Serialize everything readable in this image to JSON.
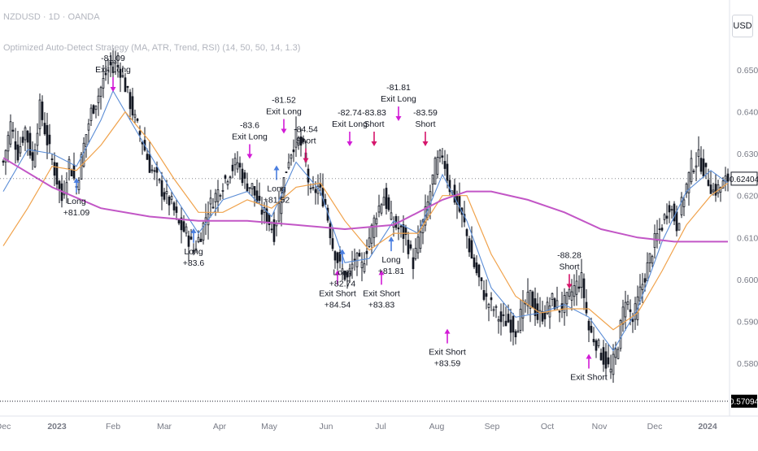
{
  "header": {
    "symbol_line": "NZDUSD · 1D · OANDA",
    "strategy_line": "Optimized Auto-Detect Strategy (MA, ATR, Trend, RSI) (14, 50, 50, 14, 1.3)",
    "currency": "USD"
  },
  "price_scale": {
    "last_price": "0.62404",
    "low_marker": "0.57094"
  },
  "colors": {
    "up_candle": "#131722",
    "down_candle": "#131722",
    "fast_ma": "#5b8dd6",
    "slow_ma": "#f0a24b",
    "long_ma": "#c256c6",
    "long_signal": "#4a7ee0",
    "short_signal": "#d5156b",
    "exit_signal": "#d21bd6",
    "last_price_bg": "#131722",
    "low_marker_bg": "#000000"
  },
  "chart_data": {
    "type": "candlestick",
    "symbol": "NZDUSD",
    "timeframe": "1D",
    "y_axis": {
      "ticks": [
        0.65,
        0.64,
        0.63,
        0.62,
        0.61,
        0.6,
        0.59,
        0.58
      ],
      "tick_labels": [
        "0.65000",
        "0.64000",
        "0.63000",
        "0.62000",
        "0.61000",
        "0.60000",
        "0.59000",
        "0.58000"
      ]
    },
    "x_axis": {
      "tick_labels": [
        "Dec",
        "2023",
        "Feb",
        "Mar",
        "Apr",
        "May",
        "Jun",
        "Jul",
        "Aug",
        "Sep",
        "Oct",
        "Nov",
        "Dec",
        "2024"
      ]
    },
    "price_path": [
      [
        0,
        0.628
      ],
      [
        3,
        0.637
      ],
      [
        6,
        0.63
      ],
      [
        9,
        0.636
      ],
      [
        12,
        0.628
      ],
      [
        15,
        0.641
      ],
      [
        18,
        0.633
      ],
      [
        21,
        0.626
      ],
      [
        24,
        0.619
      ],
      [
        27,
        0.628
      ],
      [
        30,
        0.622
      ],
      [
        33,
        0.632
      ],
      [
        36,
        0.64
      ],
      [
        39,
        0.644
      ],
      [
        42,
        0.649
      ],
      [
        45,
        0.652
      ],
      [
        48,
        0.65
      ],
      [
        51,
        0.644
      ],
      [
        54,
        0.638
      ],
      [
        57,
        0.633
      ],
      [
        60,
        0.627
      ],
      [
        63,
        0.624
      ],
      [
        66,
        0.62
      ],
      [
        69,
        0.618
      ],
      [
        72,
        0.613
      ],
      [
        75,
        0.611
      ],
      [
        78,
        0.607
      ],
      [
        81,
        0.611
      ],
      [
        84,
        0.617
      ],
      [
        87,
        0.62
      ],
      [
        90,
        0.623
      ],
      [
        93,
        0.626
      ],
      [
        96,
        0.628
      ],
      [
        99,
        0.623
      ],
      [
        102,
        0.622
      ],
      [
        105,
        0.617
      ],
      [
        108,
        0.615
      ],
      [
        111,
        0.611
      ],
      [
        114,
        0.621
      ],
      [
        117,
        0.629
      ],
      [
        120,
        0.634
      ],
      [
        123,
        0.631
      ],
      [
        126,
        0.62
      ],
      [
        129,
        0.622
      ],
      [
        132,
        0.618
      ],
      [
        135,
        0.608
      ],
      [
        138,
        0.603
      ],
      [
        141,
        0.6
      ],
      [
        144,
        0.605
      ],
      [
        147,
        0.603
      ],
      [
        150,
        0.61
      ],
      [
        153,
        0.616
      ],
      [
        156,
        0.62
      ],
      [
        159,
        0.614
      ],
      [
        162,
        0.612
      ],
      [
        165,
        0.61
      ],
      [
        168,
        0.604
      ],
      [
        171,
        0.611
      ],
      [
        174,
        0.618
      ],
      [
        177,
        0.627
      ],
      [
        180,
        0.63
      ],
      [
        183,
        0.622
      ],
      [
        186,
        0.618
      ],
      [
        189,
        0.613
      ],
      [
        192,
        0.605
      ],
      [
        195,
        0.6
      ],
      [
        198,
        0.595
      ],
      [
        201,
        0.593
      ],
      [
        204,
        0.59
      ],
      [
        207,
        0.59
      ],
      [
        210,
        0.588
      ],
      [
        213,
        0.593
      ],
      [
        216,
        0.596
      ],
      [
        219,
        0.591
      ],
      [
        222,
        0.592
      ],
      [
        225,
        0.595
      ],
      [
        228,
        0.593
      ],
      [
        231,
        0.595
      ],
      [
        234,
        0.598
      ],
      [
        237,
        0.6
      ],
      [
        240,
        0.588
      ],
      [
        243,
        0.585
      ],
      [
        246,
        0.581
      ],
      [
        249,
        0.578
      ],
      [
        252,
        0.585
      ],
      [
        255,
        0.596
      ],
      [
        258,
        0.59
      ],
      [
        261,
        0.597
      ],
      [
        264,
        0.603
      ],
      [
        267,
        0.609
      ],
      [
        270,
        0.613
      ],
      [
        273,
        0.618
      ],
      [
        276,
        0.613
      ],
      [
        279,
        0.62
      ],
      [
        282,
        0.627
      ],
      [
        285,
        0.629
      ],
      [
        288,
        0.625
      ],
      [
        291,
        0.621
      ],
      [
        294,
        0.622
      ],
      [
        297,
        0.624
      ]
    ],
    "series": [
      {
        "name": "fast MA",
        "points": [
          [
            0,
            0.621
          ],
          [
            10,
            0.631
          ],
          [
            20,
            0.63
          ],
          [
            30,
            0.627
          ],
          [
            40,
            0.638
          ],
          [
            45,
            0.645
          ],
          [
            50,
            0.64
          ],
          [
            60,
            0.63
          ],
          [
            70,
            0.62
          ],
          [
            80,
            0.611
          ],
          [
            90,
            0.619
          ],
          [
            100,
            0.621
          ],
          [
            110,
            0.615
          ],
          [
            120,
            0.628
          ],
          [
            130,
            0.621
          ],
          [
            140,
            0.604
          ],
          [
            150,
            0.605
          ],
          [
            160,
            0.614
          ],
          [
            170,
            0.611
          ],
          [
            180,
            0.625
          ],
          [
            190,
            0.614
          ],
          [
            200,
            0.598
          ],
          [
            210,
            0.591
          ],
          [
            220,
            0.592
          ],
          [
            230,
            0.594
          ],
          [
            240,
            0.591
          ],
          [
            250,
            0.583
          ],
          [
            260,
            0.593
          ],
          [
            270,
            0.609
          ],
          [
            280,
            0.621
          ],
          [
            290,
            0.626
          ],
          [
            297,
            0.623
          ]
        ]
      },
      {
        "name": "slow MA",
        "points": [
          [
            0,
            0.608
          ],
          [
            10,
            0.617
          ],
          [
            20,
            0.627
          ],
          [
            30,
            0.626
          ],
          [
            40,
            0.632
          ],
          [
            50,
            0.64
          ],
          [
            60,
            0.633
          ],
          [
            70,
            0.624
          ],
          [
            80,
            0.616
          ],
          [
            90,
            0.616
          ],
          [
            100,
            0.619
          ],
          [
            110,
            0.617
          ],
          [
            120,
            0.622
          ],
          [
            130,
            0.623
          ],
          [
            140,
            0.614
          ],
          [
            150,
            0.607
          ],
          [
            160,
            0.611
          ],
          [
            170,
            0.611
          ],
          [
            180,
            0.62
          ],
          [
            190,
            0.62
          ],
          [
            200,
            0.606
          ],
          [
            210,
            0.596
          ],
          [
            220,
            0.592
          ],
          [
            230,
            0.593
          ],
          [
            240,
            0.593
          ],
          [
            250,
            0.588
          ],
          [
            260,
            0.592
          ],
          [
            270,
            0.602
          ],
          [
            280,
            0.613
          ],
          [
            290,
            0.62
          ],
          [
            297,
            0.623
          ]
        ]
      },
      {
        "name": "long MA",
        "points": [
          [
            0,
            0.629
          ],
          [
            20,
            0.622
          ],
          [
            40,
            0.617
          ],
          [
            60,
            0.615
          ],
          [
            80,
            0.614
          ],
          [
            100,
            0.614
          ],
          [
            120,
            0.613
          ],
          [
            140,
            0.612
          ],
          [
            160,
            0.613
          ],
          [
            180,
            0.619
          ],
          [
            190,
            0.621
          ],
          [
            200,
            0.621
          ],
          [
            215,
            0.619
          ],
          [
            230,
            0.616
          ],
          [
            245,
            0.612
          ],
          [
            260,
            0.61
          ],
          [
            275,
            0.609
          ],
          [
            290,
            0.609
          ],
          [
            297,
            0.609
          ]
        ]
      }
    ],
    "annotations": [
      {
        "kind": "long",
        "lines": [
          "Long",
          "+81.09"
        ],
        "bar": 30,
        "y": 0.625
      },
      {
        "kind": "exit_long",
        "lines": [
          "-81.09",
          "Exit Long"
        ],
        "bar": 45,
        "y": 0.644
      },
      {
        "kind": "long",
        "lines": [
          "Long",
          "+83.6"
        ],
        "bar": 78,
        "y": 0.613
      },
      {
        "kind": "exit_long",
        "lines": [
          "-83.6",
          "Exit Long"
        ],
        "bar": 101,
        "y": 0.628
      },
      {
        "kind": "exit_long",
        "lines": [
          "-81.52",
          "Exit Long"
        ],
        "bar": 115,
        "y": 0.634
      },
      {
        "kind": "long",
        "lines": [
          "Long",
          "+81.52"
        ],
        "bar": 112,
        "y": 0.628
      },
      {
        "kind": "short",
        "lines": [
          "-84.54",
          "Short"
        ],
        "bar": 124,
        "y": 0.627
      },
      {
        "kind": "exit_short",
        "lines": [
          "Exit Short",
          "+84.54"
        ],
        "bar": 137,
        "y": 0.603
      },
      {
        "kind": "exit_long",
        "lines": [
          "-82.74",
          "Exit Long"
        ],
        "bar": 142,
        "y": 0.631
      },
      {
        "kind": "long",
        "lines": [
          "Long",
          "+82.74"
        ],
        "bar": 139,
        "y": 0.608
      },
      {
        "kind": "short",
        "lines": [
          "-83.83",
          "Short"
        ],
        "bar": 152,
        "y": 0.631
      },
      {
        "kind": "exit_short",
        "lines": [
          "Exit Short",
          "+83.83"
        ],
        "bar": 155,
        "y": 0.603
      },
      {
        "kind": "exit_long",
        "lines": [
          "-81.81",
          "Exit Long"
        ],
        "bar": 162,
        "y": 0.637
      },
      {
        "kind": "long",
        "lines": [
          "Long",
          "+81.81"
        ],
        "bar": 159,
        "y": 0.611
      },
      {
        "kind": "short",
        "lines": [
          "-83.59",
          "Short"
        ],
        "bar": 173,
        "y": 0.631
      },
      {
        "kind": "exit_short",
        "lines": [
          "Exit Short",
          "+83.59"
        ],
        "bar": 182,
        "y": 0.589
      },
      {
        "kind": "short",
        "lines": [
          "-88.28",
          "Short"
        ],
        "bar": 232,
        "y": 0.597
      },
      {
        "kind": "exit_short",
        "lines": [
          "Exit Short",
          ""
        ],
        "bar": 240,
        "y": 0.583
      }
    ]
  }
}
